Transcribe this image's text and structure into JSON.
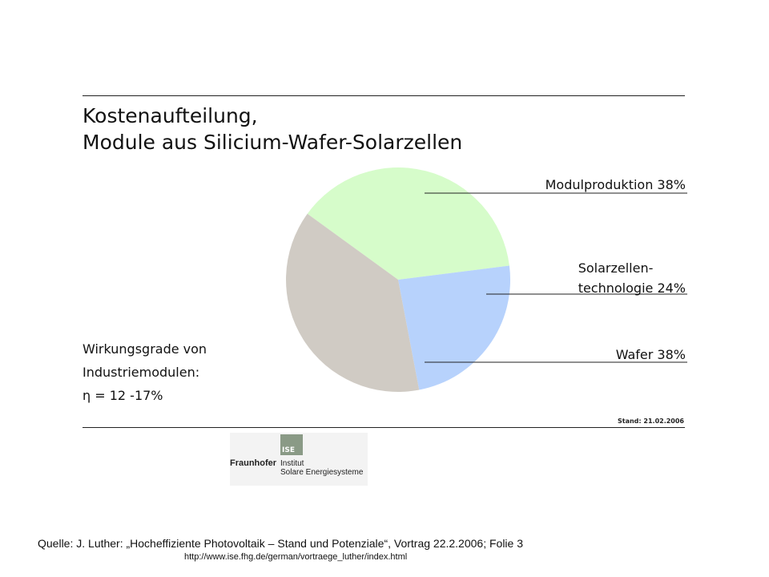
{
  "title": {
    "line1": "Kostenaufteilung,",
    "line2": "Module aus Silicium-Wafer-Solarzellen"
  },
  "chart_data": {
    "type": "pie",
    "slices": [
      {
        "label": "Modulproduktion 38%",
        "value": 38,
        "color": "#d6fcca"
      },
      {
        "label": "Solarzellen-technologie 24%",
        "value": 24,
        "color": "#b7d2fc"
      },
      {
        "label": "Wafer 38%",
        "value": 38,
        "color": "#d0cbc4"
      }
    ],
    "labels": {
      "modul": "Modulproduktion 38%",
      "solar_line1": "Solarzellen-",
      "solar_line2": "technologie 24%",
      "wafer": "Wafer 38%"
    }
  },
  "efficiency": {
    "line1": "Wirkungsgrade von",
    "line2": "Industriemodulen:",
    "line3": "η = 12 -17%"
  },
  "stand": "Stand: 21.02.2006",
  "logo": {
    "ise": "ISE",
    "brand": "Fraunhofer",
    "inst1": "Institut",
    "inst2": "Solare Energiesysteme"
  },
  "source": "Quelle: J. Luther: „Hocheffiziente Photovoltaik – Stand und Potenziale“, Vortrag 22.2.2006; Folie 3",
  "url": "http://www.ise.fhg.de/german/vortraege_luther/index.html"
}
